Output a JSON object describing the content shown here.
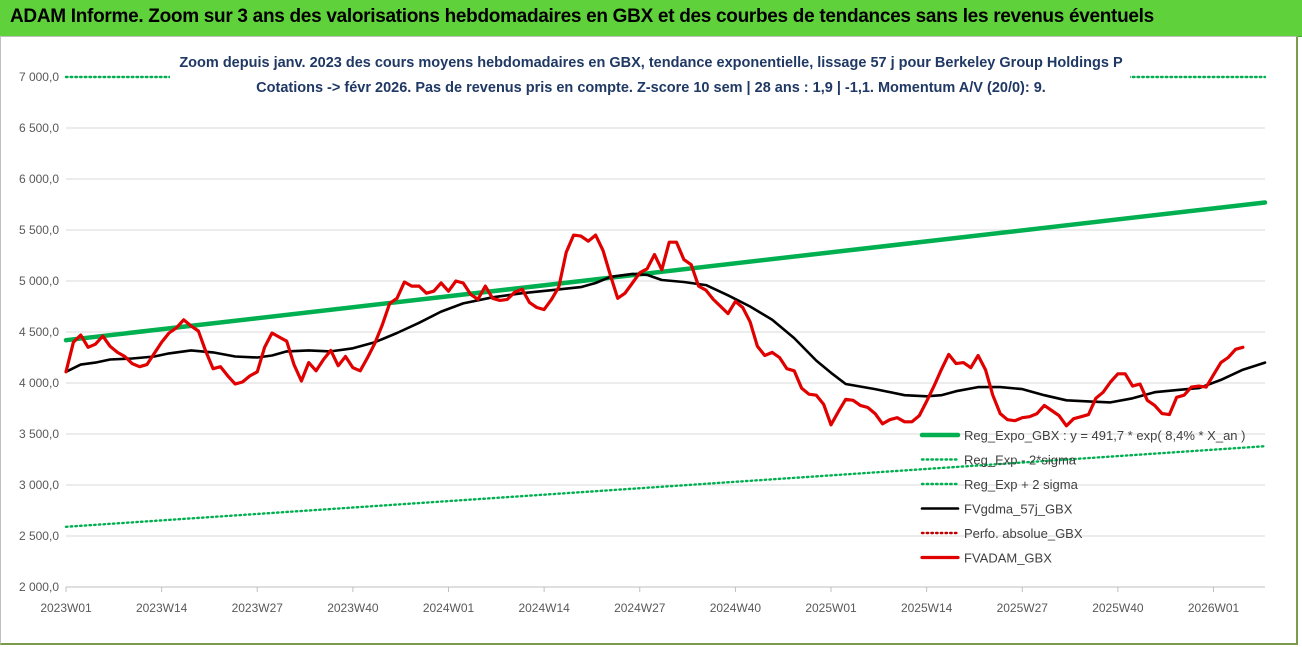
{
  "header": {
    "title": "ADAM Informe. Zoom sur 3 ans des valorisations hebdomadaires en GBX et des courbes de tendances sans les revenus éventuels"
  },
  "colors": {
    "banner": "#5fd13a",
    "trend": "#00b050",
    "price": "#e00000",
    "smooth": "#000000",
    "perf": "#c00000",
    "title_text": "#1f3864"
  },
  "chart_data": {
    "type": "line",
    "title": "Zoom depuis janv. 2023 des cours moyens hebdomadaires en GBX, tendance exponentielle, lissage 57 j pour Berkeley Group Holdings P",
    "subtitle": "Cotations -> févr 2026. Pas de revenus pris en compte. Z-score 10 sem | 28 ans : 1,9 | -1,1. Momentum A/V (20/0): 9.",
    "ylim": [
      2000,
      7000
    ],
    "yticks": [
      "2 000,0",
      "2 500,0",
      "3 000,0",
      "3 500,0",
      "4 000,0",
      "4 500,0",
      "5 000,0",
      "5 500,0",
      "6 000,0",
      "6 500,0",
      "7 000,0"
    ],
    "xlabels": [
      {
        "week": 0,
        "label": "2023W01"
      },
      {
        "week": 13,
        "label": "2023W14"
      },
      {
        "week": 26,
        "label": "2023W27"
      },
      {
        "week": 39,
        "label": "2023W40"
      },
      {
        "week": 52,
        "label": "2024W01"
      },
      {
        "week": 65,
        "label": "2024W14"
      },
      {
        "week": 78,
        "label": "2024W27"
      },
      {
        "week": 91,
        "label": "2024W40"
      },
      {
        "week": 104,
        "label": "2025W01"
      },
      {
        "week": 117,
        "label": "2025W14"
      },
      {
        "week": 130,
        "label": "2025W27"
      },
      {
        "week": 143,
        "label": "2025W40"
      },
      {
        "week": 156,
        "label": "2026W01"
      }
    ],
    "x_range_weeks": [
      0,
      163
    ],
    "grid": "horizontal",
    "legend_position": "bottom-right",
    "series": [
      {
        "key": "trend",
        "name": "Reg_Expo_GBX : y = 491,7 * exp( 8,4% *  X_an )",
        "style": "solid-thick",
        "color": "#00b050",
        "points": [
          [
            0,
            4420
          ],
          [
            163,
            5770
          ]
        ]
      },
      {
        "key": "lower",
        "name": "Reg_Exp - 2*sigma",
        "style": "dotted",
        "color": "#00b050",
        "points": [
          [
            0,
            2590
          ],
          [
            163,
            3380
          ]
        ]
      },
      {
        "key": "upper",
        "name": "Reg_Exp + 2 sigma",
        "style": "dotted",
        "color": "#00b050",
        "points": [
          [
            0,
            7000
          ],
          [
            163,
            7000
          ]
        ]
      },
      {
        "key": "smooth",
        "name": "FVgdma_57j_GBX",
        "style": "solid",
        "color": "#000000",
        "points": [
          [
            0,
            4110
          ],
          [
            2,
            4180
          ],
          [
            4,
            4200
          ],
          [
            6,
            4230
          ],
          [
            9,
            4240
          ],
          [
            12,
            4260
          ],
          [
            14,
            4290
          ],
          [
            17,
            4320
          ],
          [
            20,
            4300
          ],
          [
            23,
            4260
          ],
          [
            26,
            4250
          ],
          [
            28,
            4270
          ],
          [
            30,
            4310
          ],
          [
            33,
            4320
          ],
          [
            36,
            4310
          ],
          [
            39,
            4340
          ],
          [
            42,
            4400
          ],
          [
            45,
            4490
          ],
          [
            48,
            4590
          ],
          [
            51,
            4700
          ],
          [
            54,
            4780
          ],
          [
            58,
            4840
          ],
          [
            62,
            4880
          ],
          [
            66,
            4910
          ],
          [
            70,
            4940
          ],
          [
            72,
            4980
          ],
          [
            74,
            5040
          ],
          [
            77,
            5070
          ],
          [
            79,
            5060
          ],
          [
            81,
            5010
          ],
          [
            84,
            4990
          ],
          [
            87,
            4960
          ],
          [
            90,
            4860
          ],
          [
            93,
            4750
          ],
          [
            96,
            4620
          ],
          [
            99,
            4440
          ],
          [
            102,
            4220
          ],
          [
            104,
            4100
          ],
          [
            106,
            3990
          ],
          [
            110,
            3940
          ],
          [
            114,
            3880
          ],
          [
            117,
            3870
          ],
          [
            119,
            3880
          ],
          [
            121,
            3920
          ],
          [
            124,
            3960
          ],
          [
            127,
            3960
          ],
          [
            130,
            3940
          ],
          [
            133,
            3880
          ],
          [
            136,
            3830
          ],
          [
            139,
            3820
          ],
          [
            142,
            3810
          ],
          [
            145,
            3850
          ],
          [
            148,
            3910
          ],
          [
            151,
            3930
          ],
          [
            154,
            3950
          ],
          [
            157,
            4030
          ],
          [
            160,
            4130
          ],
          [
            163,
            4200
          ]
        ]
      },
      {
        "key": "perf",
        "name": "Perfo. absolue_GBX",
        "style": "dotted",
        "color": "#c00000",
        "points": []
      },
      {
        "key": "price",
        "name": "FVADAM_GBX",
        "style": "solid-thick",
        "color": "#e00000",
        "points": [
          [
            0,
            4110
          ],
          [
            1,
            4400
          ],
          [
            2,
            4470
          ],
          [
            3,
            4350
          ],
          [
            4,
            4380
          ],
          [
            5,
            4460
          ],
          [
            6,
            4360
          ],
          [
            7,
            4300
          ],
          [
            8,
            4260
          ],
          [
            9,
            4190
          ],
          [
            10,
            4160
          ],
          [
            11,
            4180
          ],
          [
            12,
            4290
          ],
          [
            13,
            4400
          ],
          [
            14,
            4490
          ],
          [
            15,
            4540
          ],
          [
            16,
            4620
          ],
          [
            17,
            4560
          ],
          [
            18,
            4510
          ],
          [
            19,
            4310
          ],
          [
            20,
            4140
          ],
          [
            21,
            4160
          ],
          [
            22,
            4070
          ],
          [
            23,
            3990
          ],
          [
            24,
            4010
          ],
          [
            25,
            4070
          ],
          [
            26,
            4110
          ],
          [
            27,
            4350
          ],
          [
            28,
            4490
          ],
          [
            29,
            4450
          ],
          [
            30,
            4410
          ],
          [
            31,
            4180
          ],
          [
            32,
            4020
          ],
          [
            33,
            4200
          ],
          [
            34,
            4120
          ],
          [
            35,
            4230
          ],
          [
            36,
            4320
          ],
          [
            37,
            4170
          ],
          [
            38,
            4260
          ],
          [
            39,
            4150
          ],
          [
            40,
            4120
          ],
          [
            41,
            4250
          ],
          [
            42,
            4390
          ],
          [
            43,
            4570
          ],
          [
            44,
            4780
          ],
          [
            45,
            4830
          ],
          [
            46,
            4990
          ],
          [
            47,
            4950
          ],
          [
            48,
            4950
          ],
          [
            49,
            4880
          ],
          [
            50,
            4900
          ],
          [
            51,
            4980
          ],
          [
            52,
            4900
          ],
          [
            53,
            5000
          ],
          [
            54,
            4980
          ],
          [
            55,
            4870
          ],
          [
            56,
            4820
          ],
          [
            57,
            4950
          ],
          [
            58,
            4830
          ],
          [
            59,
            4810
          ],
          [
            60,
            4820
          ],
          [
            61,
            4890
          ],
          [
            62,
            4920
          ],
          [
            63,
            4790
          ],
          [
            64,
            4740
          ],
          [
            65,
            4720
          ],
          [
            66,
            4820
          ],
          [
            67,
            4940
          ],
          [
            68,
            5280
          ],
          [
            69,
            5450
          ],
          [
            70,
            5440
          ],
          [
            71,
            5390
          ],
          [
            72,
            5450
          ],
          [
            73,
            5300
          ],
          [
            74,
            5060
          ],
          [
            75,
            4830
          ],
          [
            76,
            4880
          ],
          [
            77,
            4980
          ],
          [
            78,
            5080
          ],
          [
            79,
            5120
          ],
          [
            80,
            5260
          ],
          [
            81,
            5110
          ],
          [
            82,
            5380
          ],
          [
            83,
            5380
          ],
          [
            84,
            5210
          ],
          [
            85,
            5160
          ],
          [
            86,
            4950
          ],
          [
            87,
            4910
          ],
          [
            88,
            4820
          ],
          [
            89,
            4750
          ],
          [
            90,
            4680
          ],
          [
            91,
            4800
          ],
          [
            92,
            4740
          ],
          [
            93,
            4600
          ],
          [
            94,
            4360
          ],
          [
            95,
            4270
          ],
          [
            96,
            4300
          ],
          [
            97,
            4250
          ],
          [
            98,
            4140
          ],
          [
            99,
            4120
          ],
          [
            100,
            3950
          ],
          [
            101,
            3890
          ],
          [
            102,
            3880
          ],
          [
            103,
            3790
          ],
          [
            104,
            3590
          ],
          [
            105,
            3720
          ],
          [
            106,
            3840
          ],
          [
            107,
            3830
          ],
          [
            108,
            3780
          ],
          [
            109,
            3760
          ],
          [
            110,
            3700
          ],
          [
            111,
            3600
          ],
          [
            112,
            3640
          ],
          [
            113,
            3660
          ],
          [
            114,
            3620
          ],
          [
            115,
            3620
          ],
          [
            116,
            3680
          ],
          [
            117,
            3820
          ],
          [
            118,
            3970
          ],
          [
            119,
            4130
          ],
          [
            120,
            4280
          ],
          [
            121,
            4190
          ],
          [
            122,
            4200
          ],
          [
            123,
            4150
          ],
          [
            124,
            4270
          ],
          [
            125,
            4130
          ],
          [
            126,
            3880
          ],
          [
            127,
            3700
          ],
          [
            128,
            3640
          ],
          [
            129,
            3630
          ],
          [
            130,
            3660
          ],
          [
            131,
            3670
          ],
          [
            132,
            3700
          ],
          [
            133,
            3780
          ],
          [
            134,
            3730
          ],
          [
            135,
            3680
          ],
          [
            136,
            3580
          ],
          [
            137,
            3650
          ],
          [
            138,
            3670
          ],
          [
            139,
            3690
          ],
          [
            140,
            3850
          ],
          [
            141,
            3910
          ],
          [
            142,
            4010
          ],
          [
            143,
            4090
          ],
          [
            144,
            4090
          ],
          [
            145,
            3970
          ],
          [
            146,
            3990
          ],
          [
            147,
            3830
          ],
          [
            148,
            3780
          ],
          [
            149,
            3700
          ],
          [
            150,
            3690
          ],
          [
            151,
            3860
          ],
          [
            152,
            3880
          ],
          [
            153,
            3960
          ],
          [
            154,
            3970
          ],
          [
            155,
            3960
          ],
          [
            156,
            4080
          ],
          [
            157,
            4200
          ],
          [
            158,
            4250
          ],
          [
            159,
            4330
          ],
          [
            160,
            4350
          ]
        ]
      }
    ]
  }
}
